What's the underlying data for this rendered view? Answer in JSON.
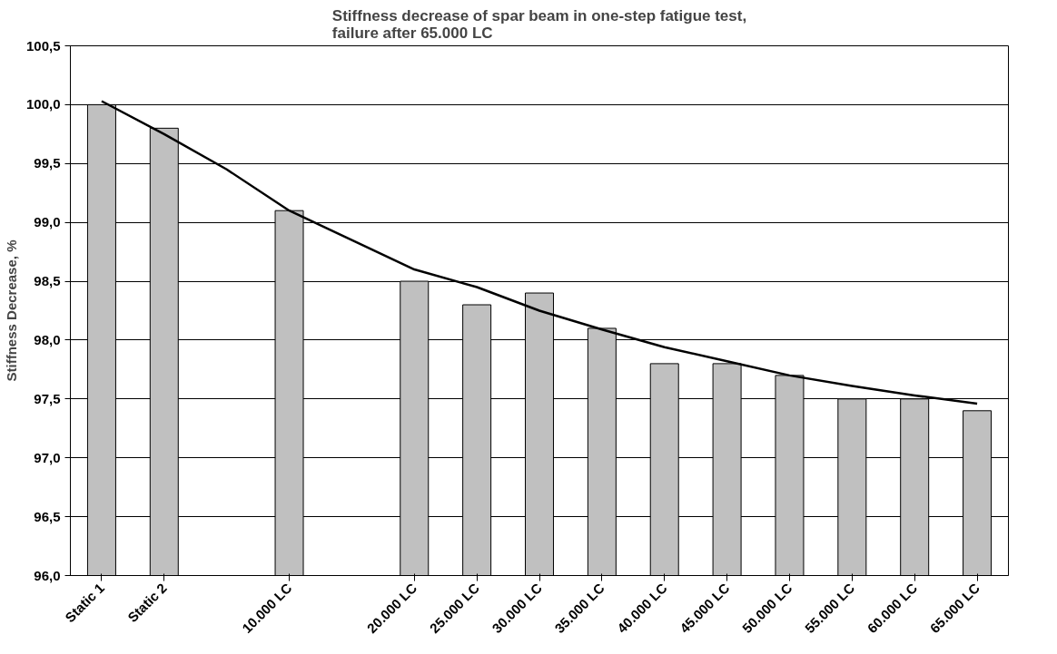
{
  "chart_data": {
    "type": "bar",
    "title": "Stiffness decrease of spar beam in one-step fatigue test,\nfailure after 65.000 LC",
    "ylabel": "Stiffness Decrease, %",
    "categories": [
      "Static 1",
      "Static 2",
      null,
      "10.000 LC",
      null,
      "20.000 LC",
      "25.000 LC",
      "30.000 LC",
      "35.000 LC",
      "40.000 LC",
      "45.000 LC",
      "50.000 LC",
      "55.000 LC",
      "60.000 LC",
      "65.000 LC"
    ],
    "series": [
      {
        "color": "#c0c0c0",
        "values": [
          100.0,
          99.8,
          null,
          99.1,
          null,
          98.5,
          98.3,
          98.4,
          98.1,
          97.8,
          97.8,
          97.7,
          97.5,
          97.5,
          97.4
        ]
      },
      {
        "type": "line",
        "color": "#000000",
        "values": [
          100.03,
          99.75,
          99.45,
          99.1,
          98.85,
          98.6,
          98.45,
          98.25,
          98.09,
          97.94,
          97.82,
          97.7,
          97.61,
          97.53,
          97.46
        ]
      }
    ],
    "ylim": [
      96.0,
      100.5
    ],
    "yticks": [
      {
        "value": 96.0,
        "label": "96,0"
      },
      {
        "value": 96.5,
        "label": "96,5"
      },
      {
        "value": 97.0,
        "label": "97,0"
      },
      {
        "value": 97.5,
        "label": "97,5"
      },
      {
        "value": 98.0,
        "label": "98,0"
      },
      {
        "value": 98.5,
        "label": "98,5"
      },
      {
        "value": 99.0,
        "label": "99,0"
      },
      {
        "value": 99.5,
        "label": "99,5"
      },
      {
        "value": 100.0,
        "label": "100,0"
      },
      {
        "value": 100.5,
        "label": "100,5"
      }
    ],
    "grid": "y",
    "marker": "none",
    "line_style": "solid"
  }
}
